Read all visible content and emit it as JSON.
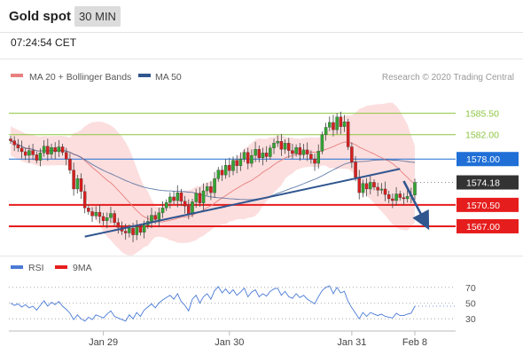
{
  "header": {
    "title": "Gold spot",
    "timeframe": "30 MIN"
  },
  "timestamp": "07:24:54 CET",
  "colors": {
    "candle_up": "#33a333",
    "candle_down": "#d61f1f",
    "ma20": "#e88080",
    "bollinger_fill": "#fbd8d8",
    "ma50": "#30568f",
    "resistance": "#8cc63f",
    "pivot": "#1f6fd6",
    "support": "#e61d1d",
    "last_price": "#333333",
    "trendline": "#30568f",
    "rsi": "#4a7bd6",
    "rsi_ma": "#e61d1d"
  },
  "chart_data": {
    "type": "candlestick",
    "legend": [
      {
        "name": "MA 20 + Bollinger Bands",
        "color": "#e88080"
      },
      {
        "name": "MA 50",
        "color": "#30568f"
      }
    ],
    "copyright": "Research © 2020 Trading Central",
    "ylim": [
      1562.2,
      1589.8
    ],
    "x_labels": [
      "Jan 29",
      "Jan 30",
      "Jan 31",
      "Feb 8"
    ],
    "x_label_index": [
      25,
      59,
      92,
      109
    ],
    "levels": [
      {
        "value": 1585.5,
        "label": "1585.50",
        "kind": "resistance"
      },
      {
        "value": 1582.0,
        "label": "1582.00",
        "kind": "resistance"
      },
      {
        "value": 1578.0,
        "label": "1578.00",
        "kind": "pivot"
      },
      {
        "value": 1574.18,
        "label": "1574.18",
        "kind": "last"
      },
      {
        "value": 1570.5,
        "label": "1570.50",
        "kind": "support"
      },
      {
        "value": 1567.0,
        "label": "1567.00",
        "kind": "support"
      }
    ],
    "closes": [
      1581.0,
      1580.3,
      1579.8,
      1579.2,
      1578.6,
      1579.4,
      1578.7,
      1577.8,
      1579.0,
      1580.1,
      1578.8,
      1579.9,
      1579.2,
      1580.0,
      1579.1,
      1578.0,
      1576.2,
      1573.1,
      1574.8,
      1572.7,
      1570.0,
      1569.4,
      1568.7,
      1569.3,
      1568.6,
      1567.9,
      1568.4,
      1569.1,
      1567.6,
      1566.8,
      1566.2,
      1565.9,
      1566.7,
      1565.6,
      1566.9,
      1566.0,
      1567.2,
      1567.8,
      1568.8,
      1568.1,
      1569.2,
      1570.0,
      1570.9,
      1571.8,
      1571.2,
      1572.5,
      1571.1,
      1570.3,
      1569.0,
      1571.0,
      1572.4,
      1570.8,
      1572.8,
      1573.5,
      1572.5,
      1574.8,
      1576.2,
      1575.4,
      1577.0,
      1576.1,
      1577.8,
      1576.9,
      1578.0,
      1579.1,
      1577.3,
      1578.6,
      1579.6,
      1578.2,
      1579.0,
      1578.4,
      1579.8,
      1580.6,
      1580.9,
      1579.6,
      1580.6,
      1579.4,
      1578.9,
      1579.9,
      1578.7,
      1579.5,
      1578.8,
      1578.0,
      1577.3,
      1579.3,
      1582.0,
      1583.2,
      1584.0,
      1582.8,
      1584.9,
      1583.3,
      1584.1,
      1580.0,
      1577.5,
      1575.0,
      1572.5,
      1574.0,
      1573.1,
      1574.2,
      1573.4,
      1572.9,
      1573.1,
      1572.2,
      1571.5,
      1571.2,
      1572.3,
      1571.7,
      1571.5,
      1571.9,
      1572.1,
      1574.18
    ],
    "trendline": {
      "from": [
        20,
        1565.3
      ],
      "to": [
        105,
        1576.4
      ]
    },
    "forecast_arrow": {
      "from": [
        106,
        1574.4
      ],
      "to": [
        112,
        1567.4
      ]
    },
    "rsi": {
      "legend": [
        {
          "name": "RSI",
          "color": "#4a7bd6"
        },
        {
          "name": "9MA",
          "color": "#e61d1d"
        }
      ],
      "ylim": [
        20,
        80
      ],
      "levels": [
        70,
        50,
        30
      ],
      "level_labels": [
        "70",
        "50",
        "30"
      ],
      "values": [
        50,
        47,
        49,
        45,
        48,
        44,
        46,
        41,
        47,
        53,
        46,
        51,
        48,
        52,
        46,
        42,
        37,
        29,
        35,
        30,
        27,
        32,
        29,
        35,
        33,
        31,
        36,
        40,
        33,
        31,
        29,
        27,
        35,
        30,
        38,
        33,
        41,
        45,
        49,
        44,
        50,
        54,
        57,
        60,
        55,
        62,
        52,
        47,
        40,
        55,
        60,
        50,
        58,
        62,
        55,
        66,
        71,
        63,
        68,
        62,
        67,
        60,
        64,
        69,
        58,
        64,
        67,
        58,
        62,
        59,
        65,
        68,
        69,
        60,
        65,
        58,
        56,
        62,
        57,
        60,
        55,
        52,
        49,
        58,
        66,
        70,
        72,
        62,
        70,
        63,
        65,
        52,
        44,
        37,
        30,
        38,
        33,
        38,
        36,
        34,
        36,
        33,
        32,
        31,
        37,
        34,
        34,
        36,
        37,
        46
      ]
    }
  }
}
